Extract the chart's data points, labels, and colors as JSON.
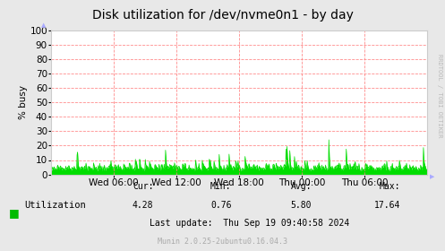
{
  "title": "Disk utilization for /dev/nvme0n1 - by day",
  "ylabel": "% busy",
  "background_color": "#e8e8e8",
  "plot_bg_color": "#ffffff",
  "grid_color": "#ff8080",
  "line_color": "#00dd00",
  "fill_color": "#00dd00",
  "ylim": [
    0,
    100
  ],
  "yticks": [
    0,
    10,
    20,
    30,
    40,
    50,
    60,
    70,
    80,
    90,
    100
  ],
  "xtick_labels": [
    "Wed 06:00",
    "Wed 12:00",
    "Wed 18:00",
    "Thu 00:00",
    "Thu 06:00"
  ],
  "legend_label": "Utilization",
  "legend_color": "#00bb00",
  "stats": {
    "cur_label": "Cur:",
    "cur_val": "4.28",
    "min_label": "Min:",
    "min_val": "0.76",
    "avg_label": "Avg:",
    "avg_val": "5.80",
    "max_label": "Max:",
    "max_val": "17.64"
  },
  "last_update": "Last update:  Thu Sep 19 09:40:58 2024",
  "munin_text": "Munin 2.0.25-2ubuntu0.16.04.3",
  "rrdtool_text": "RRDTOOL / TOBI OETIKER",
  "title_fontsize": 10,
  "axis_fontsize": 7.5,
  "legend_fontsize": 7.5,
  "stats_fontsize": 7
}
